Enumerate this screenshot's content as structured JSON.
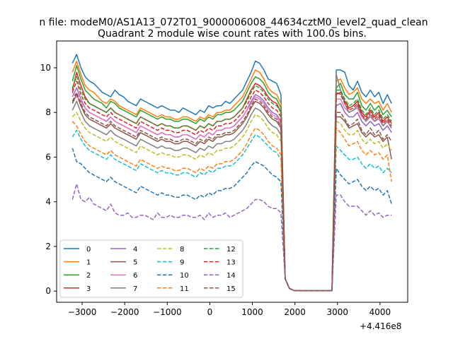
{
  "chart_data": {
    "type": "line",
    "suptitle": "n file: modeM0/AS1A13_072T01_9000006008_44634cztM0_level2_quad_clean",
    "title": "Quadrant 2 module wise count rates with 100.0s bins.",
    "xlabel": "",
    "ylabel": "",
    "x_offset_label": "+4.416e8",
    "xlim": [
      -3600,
      4650
    ],
    "ylim": [
      -0.5,
      11.2
    ],
    "xticks": [
      -3000,
      -2000,
      -1000,
      0,
      1000,
      2000,
      3000,
      4000
    ],
    "yticks": [
      0,
      2,
      4,
      6,
      8,
      10
    ],
    "xtick_labels": [
      "−3000",
      "−2000",
      "−1000",
      "0",
      "1000",
      "2000",
      "3000",
      "4000"
    ],
    "ytick_labels": [
      "0",
      "2",
      "4",
      "6",
      "8",
      "10"
    ],
    "grid": false,
    "legend": {
      "placement": "lower-left",
      "columns": 4
    },
    "segments": {
      "x1_start": -3229,
      "x1_end": 1671,
      "step1": 100,
      "gap_x": [
        1771,
        1871,
        1971,
        2071,
        2171,
        2271,
        2371,
        2471,
        2571,
        2671,
        2771,
        2871
      ],
      "gap_y": [
        0.55,
        0.12,
        0.03,
        0.02,
        0.02,
        0.02,
        0.02,
        0.02,
        0.02,
        0.02,
        0.02,
        0.02
      ],
      "x2_start": 2971,
      "x2_end": 4271,
      "step2": 100
    },
    "series": [
      {
        "name": "0",
        "color": "#1f77b4",
        "dash": "solid",
        "left": [
          10.2,
          10.6,
          10.0,
          9.6,
          9.4,
          9.3,
          9.1,
          8.9,
          8.8,
          8.7,
          9.0,
          8.8,
          8.7,
          8.5,
          8.4,
          8.3,
          8.6,
          8.5,
          8.4,
          8.3,
          8.2,
          8.3,
          8.2,
          8.1,
          8.1,
          8.0,
          8.2,
          8.1,
          8.0,
          7.9,
          8.1,
          8.0,
          8.3,
          8.2,
          8.3,
          8.3,
          8.5,
          8.4,
          8.6,
          8.8,
          9.0,
          9.4,
          9.8,
          10.3,
          10.2,
          9.9,
          9.5,
          9.4,
          9.3,
          8.8
        ],
        "right": [
          9.9,
          9.9,
          9.8,
          9.2,
          9.0,
          9.4,
          8.9,
          8.7,
          9.0,
          8.7,
          8.9,
          8.4,
          8.8,
          8.4
        ]
      },
      {
        "name": "1",
        "color": "#ff7f0e",
        "dash": "solid",
        "left": [
          9.8,
          10.3,
          9.7,
          9.2,
          9.0,
          8.9,
          8.7,
          8.5,
          8.4,
          8.6,
          8.5,
          8.3,
          8.2,
          8.1,
          8.0,
          7.9,
          8.2,
          8.1,
          8.0,
          7.9,
          7.8,
          7.9,
          7.8,
          7.8,
          7.7,
          7.7,
          7.8,
          7.8,
          7.7,
          7.6,
          7.8,
          7.7,
          7.9,
          7.8,
          8.0,
          8.0,
          8.1,
          8.1,
          8.3,
          8.5,
          8.7,
          9.1,
          9.5,
          9.9,
          9.8,
          9.5,
          9.1,
          8.9,
          8.8,
          8.4
        ],
        "right": [
          9.4,
          9.5,
          9.1,
          8.8,
          8.9,
          9.1,
          8.6,
          8.4,
          8.6,
          8.4,
          8.5,
          8.1,
          8.4,
          8.0
        ]
      },
      {
        "name": "2",
        "color": "#2ca02c",
        "dash": "solid",
        "left": [
          9.4,
          10.1,
          9.5,
          9.0,
          8.8,
          8.6,
          8.5,
          8.4,
          8.2,
          8.5,
          8.4,
          8.2,
          8.1,
          8.0,
          7.9,
          7.8,
          8.1,
          8.0,
          7.9,
          7.8,
          7.7,
          7.8,
          7.7,
          7.7,
          7.6,
          7.6,
          7.7,
          7.7,
          7.6,
          7.5,
          7.7,
          7.6,
          7.8,
          7.7,
          7.9,
          7.9,
          8.0,
          8.0,
          8.1,
          8.3,
          8.5,
          8.9,
          9.3,
          9.6,
          9.5,
          9.3,
          8.9,
          8.7,
          8.6,
          8.2
        ],
        "right": [
          9.1,
          9.3,
          8.8,
          8.6,
          8.6,
          8.9,
          8.3,
          8.1,
          8.4,
          8.1,
          8.3,
          7.9,
          8.1,
          7.8
        ]
      },
      {
        "name": "3",
        "color": "#d62728",
        "dash": "solid",
        "left": [
          9.0,
          9.8,
          9.2,
          8.7,
          8.4,
          8.3,
          8.2,
          8.1,
          8.0,
          8.2,
          8.0,
          7.9,
          7.8,
          7.7,
          7.6,
          7.5,
          7.8,
          7.7,
          7.6,
          7.5,
          7.4,
          7.5,
          7.4,
          7.4,
          7.3,
          7.3,
          7.4,
          7.4,
          7.3,
          7.2,
          7.4,
          7.3,
          7.5,
          7.4,
          7.6,
          7.6,
          7.7,
          7.7,
          7.8,
          8.0,
          8.2,
          8.6,
          9.0,
          9.3,
          9.2,
          9.0,
          8.7,
          8.5,
          8.4,
          8.0
        ],
        "right": [
          8.8,
          8.9,
          8.5,
          8.2,
          8.3,
          8.5,
          8.0,
          7.8,
          8.1,
          7.8,
          8.0,
          7.6,
          7.8,
          7.5
        ]
      },
      {
        "name": "4",
        "color": "#9467bd",
        "dash": "solid",
        "left": [
          8.7,
          9.1,
          8.6,
          8.2,
          8.0,
          7.9,
          7.8,
          7.7,
          7.6,
          7.8,
          7.6,
          7.5,
          7.4,
          7.3,
          7.2,
          7.1,
          7.4,
          7.3,
          7.2,
          7.1,
          7.0,
          7.1,
          7.0,
          7.0,
          6.9,
          6.9,
          7.0,
          7.0,
          6.9,
          6.8,
          7.0,
          6.9,
          7.1,
          7.0,
          7.2,
          7.2,
          7.3,
          7.3,
          7.4,
          7.6,
          7.8,
          8.1,
          8.5,
          8.8,
          8.7,
          8.5,
          8.2,
          8.0,
          7.9,
          7.6
        ],
        "right": [
          8.3,
          8.4,
          8.0,
          7.8,
          7.8,
          8.0,
          7.6,
          7.4,
          7.6,
          7.4,
          7.5,
          7.2,
          7.4,
          7.1
        ]
      },
      {
        "name": "5",
        "color": "#8c564b",
        "dash": "solid",
        "left": [
          8.4,
          8.8,
          8.3,
          7.9,
          7.7,
          7.6,
          7.5,
          7.4,
          7.3,
          7.5,
          7.3,
          7.2,
          7.1,
          7.0,
          6.9,
          6.8,
          7.1,
          7.0,
          6.9,
          6.8,
          6.7,
          6.8,
          6.7,
          6.7,
          6.6,
          6.6,
          6.7,
          6.7,
          6.6,
          6.5,
          6.7,
          6.6,
          6.8,
          6.7,
          6.9,
          6.9,
          7.0,
          7.0,
          7.1,
          7.3,
          7.5,
          7.8,
          8.2,
          8.5,
          8.4,
          8.2,
          7.9,
          7.7,
          7.6,
          7.3
        ],
        "right": [
          7.8,
          7.8,
          7.6,
          7.3,
          7.4,
          7.5,
          7.1,
          6.9,
          7.1,
          6.9,
          7.0,
          6.7,
          6.9,
          5.9
        ]
      },
      {
        "name": "6",
        "color": "#e377c2",
        "dash": "solid",
        "left": [
          8.9,
          8.7,
          8.5,
          8.2,
          8.0,
          7.9,
          7.8,
          7.7,
          7.6,
          7.8,
          7.6,
          7.5,
          7.4,
          7.3,
          7.2,
          7.1,
          7.4,
          7.3,
          7.2,
          7.1,
          7.0,
          7.1,
          7.0,
          7.0,
          6.9,
          6.9,
          7.0,
          7.0,
          6.9,
          6.8,
          7.0,
          6.9,
          7.1,
          7.0,
          7.2,
          7.2,
          7.3,
          7.3,
          7.4,
          7.6,
          7.8,
          8.1,
          8.4,
          8.7,
          8.6,
          8.4,
          8.1,
          7.9,
          7.8,
          7.5
        ],
        "right": [
          8.6,
          8.6,
          8.2,
          8.0,
          8.1,
          8.2,
          7.8,
          7.6,
          7.8,
          7.6,
          7.7,
          7.4,
          7.6,
          7.3
        ]
      },
      {
        "name": "7",
        "color": "#7f7f7f",
        "dash": "solid",
        "left": [
          8.1,
          8.5,
          8.0,
          7.6,
          7.4,
          7.3,
          7.2,
          7.1,
          7.0,
          7.2,
          7.0,
          6.9,
          6.8,
          6.7,
          6.6,
          6.5,
          6.8,
          6.7,
          6.6,
          6.5,
          6.4,
          6.5,
          6.4,
          6.4,
          6.3,
          6.3,
          6.4,
          6.4,
          6.3,
          6.2,
          6.4,
          6.3,
          6.5,
          6.4,
          6.6,
          6.6,
          6.7,
          6.7,
          6.8,
          7.0,
          7.2,
          7.5,
          7.9,
          8.2,
          8.1,
          7.9,
          7.6,
          7.4,
          7.3,
          7.0
        ],
        "right": [
          9.7,
          9.0,
          8.4,
          8.0,
          8.1,
          8.3,
          7.9,
          7.6,
          7.9,
          7.6,
          7.8,
          7.4,
          7.6,
          7.3
        ]
      },
      {
        "name": "8",
        "color": "#bcbd22",
        "dash": "dashed",
        "left": [
          7.8,
          8.0,
          7.6,
          7.3,
          7.1,
          7.0,
          6.9,
          6.8,
          6.7,
          6.9,
          6.7,
          6.6,
          6.5,
          6.4,
          6.3,
          6.2,
          6.5,
          6.4,
          6.3,
          6.2,
          6.1,
          6.2,
          6.1,
          6.1,
          6.0,
          6.0,
          6.1,
          6.1,
          6.0,
          5.9,
          6.1,
          6.0,
          6.2,
          6.1,
          6.3,
          6.3,
          6.4,
          6.4,
          6.5,
          6.7,
          6.9,
          7.2,
          7.6,
          7.9,
          7.8,
          7.6,
          7.3,
          7.1,
          7.0,
          6.7
        ],
        "right": [
          7.6,
          7.5,
          7.2,
          7.0,
          7.0,
          7.2,
          6.8,
          6.6,
          6.8,
          6.6,
          6.7,
          6.4,
          6.6,
          6.3
        ]
      },
      {
        "name": "9",
        "color": "#17becf",
        "dash": "dashed",
        "left": [
          6.9,
          7.2,
          6.8,
          6.5,
          6.3,
          6.2,
          6.1,
          6.0,
          5.9,
          6.1,
          5.9,
          5.8,
          5.7,
          5.6,
          5.5,
          5.4,
          5.7,
          5.6,
          5.5,
          5.4,
          5.3,
          5.4,
          5.3,
          5.3,
          5.2,
          5.2,
          5.3,
          5.3,
          5.2,
          5.1,
          5.3,
          5.2,
          5.4,
          5.3,
          5.5,
          5.5,
          5.6,
          5.6,
          5.7,
          5.9,
          6.1,
          6.4,
          6.7,
          7.0,
          6.9,
          6.7,
          6.5,
          6.3,
          6.2,
          5.9
        ],
        "right": [
          6.5,
          6.3,
          6.1,
          5.9,
          5.9,
          6.0,
          5.7,
          5.5,
          5.7,
          5.5,
          5.6,
          5.3,
          5.5,
          5.3
        ]
      },
      {
        "name": "10",
        "color": "#1f77b4",
        "dash": "dashed",
        "left": [
          6.4,
          5.8,
          5.7,
          5.5,
          5.3,
          5.2,
          5.1,
          5.0,
          4.9,
          5.1,
          4.9,
          4.8,
          4.7,
          4.6,
          4.5,
          4.4,
          4.7,
          4.6,
          4.5,
          4.4,
          4.3,
          4.4,
          4.3,
          4.3,
          4.2,
          4.2,
          4.3,
          4.3,
          4.2,
          4.1,
          4.3,
          4.2,
          4.4,
          4.3,
          4.5,
          4.5,
          4.6,
          4.6,
          4.7,
          4.9,
          5.1,
          5.3,
          5.6,
          5.8,
          5.7,
          5.6,
          5.4,
          5.2,
          5.1,
          4.9
        ],
        "right": [
          5.5,
          5.2,
          5.0,
          4.8,
          4.9,
          5.0,
          4.7,
          4.5,
          4.7,
          4.5,
          4.6,
          4.3,
          4.5,
          3.9
        ]
      },
      {
        "name": "11",
        "color": "#ff7f0e",
        "dash": "dashed",
        "left": [
          7.6,
          7.4,
          7.0,
          6.7,
          6.5,
          6.4,
          6.3,
          6.2,
          6.1,
          6.3,
          6.1,
          6.0,
          5.9,
          5.8,
          5.7,
          5.6,
          5.9,
          5.8,
          5.7,
          5.6,
          5.5,
          5.6,
          5.5,
          5.5,
          5.4,
          5.4,
          5.5,
          5.5,
          5.4,
          5.3,
          5.5,
          5.4,
          5.6,
          5.5,
          5.7,
          5.7,
          5.8,
          5.8,
          5.9,
          6.1,
          6.3,
          6.6,
          7.0,
          7.3,
          7.2,
          7.0,
          6.7,
          6.5,
          6.4,
          6.1
        ],
        "right": [
          7.3,
          7.1,
          6.8,
          6.5,
          6.6,
          6.7,
          6.3,
          6.1,
          6.3,
          6.1,
          6.2,
          5.9,
          6.1,
          4.9
        ]
      },
      {
        "name": "12",
        "color": "#2ca02c",
        "dash": "dashed",
        "left": [
          9.1,
          9.6,
          9.0,
          8.6,
          8.4,
          8.3,
          8.2,
          8.1,
          8.0,
          8.2,
          8.0,
          7.9,
          7.8,
          7.7,
          7.6,
          7.5,
          7.8,
          7.7,
          7.6,
          7.5,
          7.4,
          7.5,
          7.4,
          7.4,
          7.3,
          7.3,
          7.4,
          7.4,
          7.3,
          7.2,
          7.4,
          7.3,
          7.5,
          7.4,
          7.6,
          7.6,
          7.7,
          7.7,
          7.8,
          8.0,
          8.2,
          8.5,
          8.9,
          9.2,
          9.1,
          8.9,
          8.6,
          8.4,
          8.3,
          8.0
        ],
        "right": [
          9.0,
          9.0,
          8.6,
          8.3,
          8.4,
          8.6,
          8.1,
          7.9,
          8.2,
          7.9,
          8.1,
          7.7,
          7.9,
          7.6
        ]
      },
      {
        "name": "13",
        "color": "#d62728",
        "dash": "dashed",
        "left": [
          8.9,
          9.4,
          8.8,
          8.4,
          8.2,
          8.1,
          8.0,
          7.9,
          7.8,
          8.0,
          7.8,
          7.7,
          7.6,
          7.5,
          7.4,
          7.3,
          7.6,
          7.5,
          7.4,
          7.3,
          7.2,
          7.3,
          7.2,
          7.2,
          7.1,
          7.1,
          7.2,
          7.2,
          7.1,
          7.0,
          7.2,
          7.1,
          7.3,
          7.2,
          7.4,
          7.4,
          7.5,
          7.5,
          7.6,
          7.8,
          8.0,
          8.3,
          8.7,
          9.0,
          8.9,
          8.7,
          8.4,
          8.2,
          8.1,
          7.8
        ],
        "right": [
          8.9,
          8.8,
          8.4,
          8.1,
          8.2,
          8.4,
          7.9,
          7.7,
          8.0,
          7.7,
          7.9,
          7.5,
          7.7,
          7.4
        ]
      },
      {
        "name": "14",
        "color": "#9467bd",
        "dash": "dashed",
        "left": [
          4.1,
          4.8,
          4.1,
          4.0,
          4.2,
          3.9,
          3.8,
          3.7,
          3.6,
          3.9,
          3.5,
          3.4,
          3.4,
          3.5,
          3.3,
          3.3,
          3.4,
          3.4,
          3.3,
          3.2,
          3.5,
          3.3,
          3.3,
          3.4,
          3.3,
          3.3,
          3.4,
          3.4,
          3.3,
          3.3,
          3.4,
          3.2,
          3.5,
          3.3,
          3.4,
          3.4,
          3.5,
          3.3,
          3.4,
          3.5,
          3.6,
          3.7,
          3.9,
          4.1,
          4.1,
          4.0,
          3.8,
          3.7,
          3.7,
          3.5
        ],
        "right": [
          4.3,
          4.3,
          4.0,
          3.8,
          3.8,
          3.8,
          3.6,
          3.4,
          3.6,
          3.4,
          3.5,
          3.3,
          3.4,
          3.4
        ]
      },
      {
        "name": "15",
        "color": "#8c564b",
        "dash": "dashed",
        "left": [
          8.5,
          8.9,
          8.4,
          8.0,
          7.8,
          7.7,
          7.6,
          7.5,
          7.4,
          7.6,
          7.4,
          7.3,
          7.2,
          7.1,
          7.0,
          6.9,
          7.2,
          7.1,
          7.0,
          6.9,
          6.8,
          6.9,
          6.8,
          6.8,
          6.7,
          6.7,
          6.8,
          6.8,
          6.7,
          6.6,
          6.8,
          6.7,
          6.9,
          6.8,
          7.0,
          7.0,
          7.1,
          7.1,
          7.2,
          7.4,
          7.6,
          7.9,
          8.3,
          8.6,
          8.5,
          8.3,
          8.0,
          7.8,
          7.7,
          7.4
        ],
        "right": [
          8.0,
          8.0,
          7.7,
          7.4,
          7.5,
          7.7,
          7.2,
          7.0,
          7.3,
          7.0,
          7.2,
          6.8,
          7.0,
          6.7
        ]
      }
    ]
  }
}
